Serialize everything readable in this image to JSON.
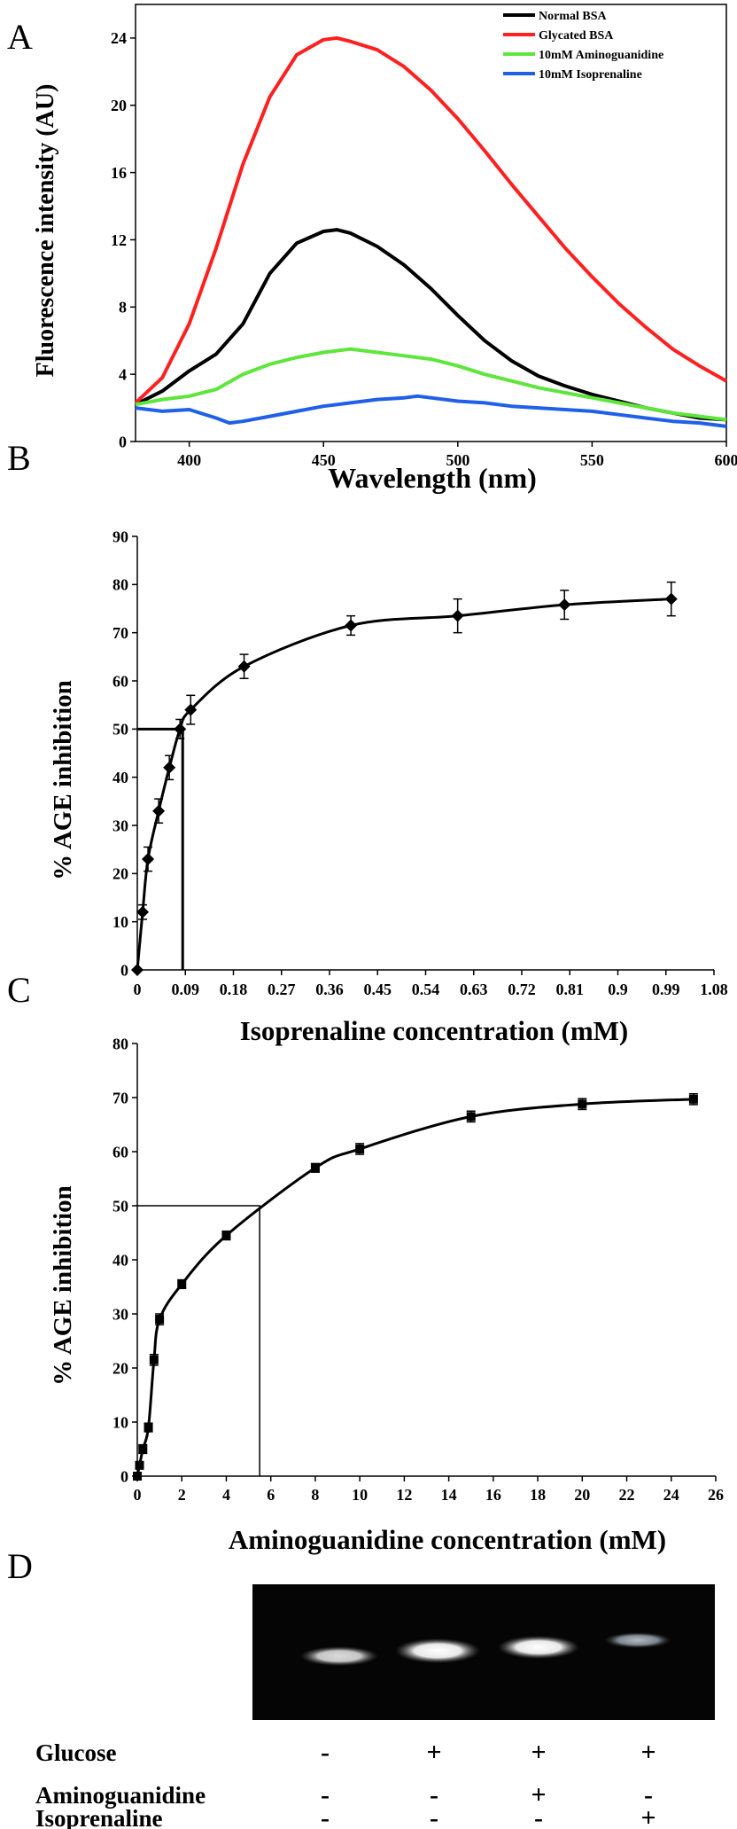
{
  "chart_data": [
    {
      "panel": "A",
      "type": "line",
      "xlabel": "Wavelength (nm)",
      "ylabel": "Fluorescence intensity (AU)",
      "xlim": [
        380,
        600
      ],
      "ylim": [
        0,
        26
      ],
      "x_ticks": [
        400,
        450,
        500,
        550,
        600
      ],
      "y_ticks": [
        0,
        4,
        8,
        12,
        16,
        20,
        24
      ],
      "legend_position": "top-right",
      "series": [
        {
          "name": "Normal BSA",
          "color": "#000000",
          "x": [
            380,
            390,
            400,
            410,
            420,
            430,
            440,
            450,
            455,
            460,
            470,
            480,
            490,
            500,
            510,
            520,
            530,
            540,
            550,
            560,
            570,
            580,
            590,
            600
          ],
          "values": [
            2.2,
            3.0,
            4.2,
            5.2,
            7.0,
            10.0,
            11.8,
            12.5,
            12.6,
            12.4,
            11.6,
            10.5,
            9.1,
            7.5,
            6.0,
            4.8,
            3.9,
            3.3,
            2.8,
            2.4,
            2.0,
            1.7,
            1.4,
            1.3
          ]
        },
        {
          "name": "Glycated BSA",
          "color": "#ff2020",
          "x": [
            380,
            390,
            400,
            410,
            420,
            430,
            440,
            450,
            455,
            460,
            470,
            480,
            490,
            500,
            510,
            520,
            530,
            540,
            550,
            560,
            570,
            580,
            590,
            600
          ],
          "values": [
            2.3,
            3.8,
            7.0,
            11.5,
            16.5,
            20.5,
            23.0,
            23.9,
            24.0,
            23.8,
            23.3,
            22.3,
            20.9,
            19.2,
            17.3,
            15.3,
            13.4,
            11.5,
            9.8,
            8.2,
            6.8,
            5.5,
            4.5,
            3.6
          ]
        },
        {
          "name": "10mM Aminoguanidine",
          "color": "#5ee63c",
          "x": [
            380,
            390,
            400,
            410,
            420,
            430,
            440,
            450,
            460,
            470,
            480,
            490,
            500,
            510,
            520,
            530,
            540,
            550,
            560,
            570,
            580,
            590,
            600
          ],
          "values": [
            2.2,
            2.5,
            2.7,
            3.1,
            4.0,
            4.6,
            5.0,
            5.3,
            5.5,
            5.3,
            5.1,
            4.9,
            4.5,
            4.0,
            3.6,
            3.2,
            2.9,
            2.6,
            2.3,
            2.0,
            1.7,
            1.5,
            1.3
          ]
        },
        {
          "name": "10mM Isoprenaline",
          "color": "#2060e8",
          "x": [
            380,
            390,
            400,
            410,
            415,
            420,
            430,
            440,
            450,
            460,
            470,
            480,
            485,
            490,
            500,
            510,
            520,
            530,
            540,
            550,
            560,
            570,
            580,
            590,
            600
          ],
          "values": [
            2.0,
            1.8,
            1.9,
            1.4,
            1.1,
            1.2,
            1.5,
            1.8,
            2.1,
            2.3,
            2.5,
            2.6,
            2.7,
            2.6,
            2.4,
            2.3,
            2.1,
            2.0,
            1.9,
            1.8,
            1.6,
            1.4,
            1.2,
            1.1,
            0.9
          ]
        }
      ]
    },
    {
      "panel": "B",
      "type": "scatter",
      "xlabel": "Isoprenaline concentration (mM)",
      "ylabel": "% AGE inhibition",
      "xlim": [
        0,
        1.08
      ],
      "ylim": [
        0,
        90
      ],
      "x_ticks": [
        0,
        0.09,
        0.18,
        0.27,
        0.36,
        0.45,
        0.54,
        0.63,
        0.72,
        0.81,
        0.9,
        0.99,
        1.08
      ],
      "x_tick_labels": [
        "0",
        "0.09",
        "0.18",
        "0.27",
        "0.36",
        "0.45",
        "0.54",
        "0.63",
        "0.72",
        "0.81",
        "0.9",
        "0.99",
        "1.08"
      ],
      "y_ticks": [
        0,
        10,
        20,
        30,
        40,
        50,
        60,
        70,
        80,
        90
      ],
      "marker": "diamond",
      "x": [
        0,
        0.01,
        0.02,
        0.04,
        0.06,
        0.08,
        0.1,
        0.2,
        0.4,
        0.6,
        0.8,
        1.0
      ],
      "values": [
        0,
        12,
        23,
        33,
        42,
        50,
        54,
        63,
        71.5,
        73.5,
        75.8,
        77
      ],
      "errors": [
        0,
        1.5,
        2.5,
        2.5,
        2.5,
        2.0,
        3.0,
        2.5,
        2.0,
        3.5,
        3.0,
        3.5
      ],
      "guide": {
        "x": 0.085,
        "y": 50
      }
    },
    {
      "panel": "C",
      "type": "scatter",
      "xlabel": "Aminoguanidine concentration (mM)",
      "ylabel": "% AGE inhibition",
      "xlim": [
        0,
        26
      ],
      "ylim": [
        0,
        80
      ],
      "x_ticks": [
        0,
        2,
        4,
        6,
        8,
        10,
        12,
        14,
        16,
        18,
        20,
        22,
        24,
        26
      ],
      "y_ticks": [
        0,
        10,
        20,
        30,
        40,
        50,
        60,
        70,
        80
      ],
      "marker": "square",
      "x": [
        0,
        0.1,
        0.25,
        0.5,
        0.75,
        1.0,
        2.0,
        4.0,
        8.0,
        10.0,
        15.0,
        20.0,
        25.0
      ],
      "values": [
        0,
        2,
        5,
        9,
        21.5,
        29,
        35.5,
        44.5,
        57,
        60.5,
        66.5,
        68.8,
        69.7
      ],
      "errors": [
        0,
        0.5,
        0.8,
        0.8,
        1.0,
        1.0,
        0.8,
        0.8,
        0.8,
        1.0,
        1.0,
        1.0,
        1.0
      ],
      "guide": {
        "x": 5.5,
        "y": 50
      }
    },
    {
      "panel": "D",
      "type": "table",
      "rows": [
        {
          "label": "Glucose",
          "values": [
            "-",
            "+",
            "+",
            "+"
          ]
        },
        {
          "label": "Aminoguanidine",
          "values": [
            "-",
            "-",
            "+",
            "-"
          ]
        },
        {
          "label": "Isoprenaline",
          "values": [
            "-",
            "-",
            "-",
            "+"
          ]
        }
      ],
      "lanes": 4
    }
  ],
  "panel_letters": {
    "a": "A",
    "b": "B",
    "c": "C",
    "d": "D"
  }
}
